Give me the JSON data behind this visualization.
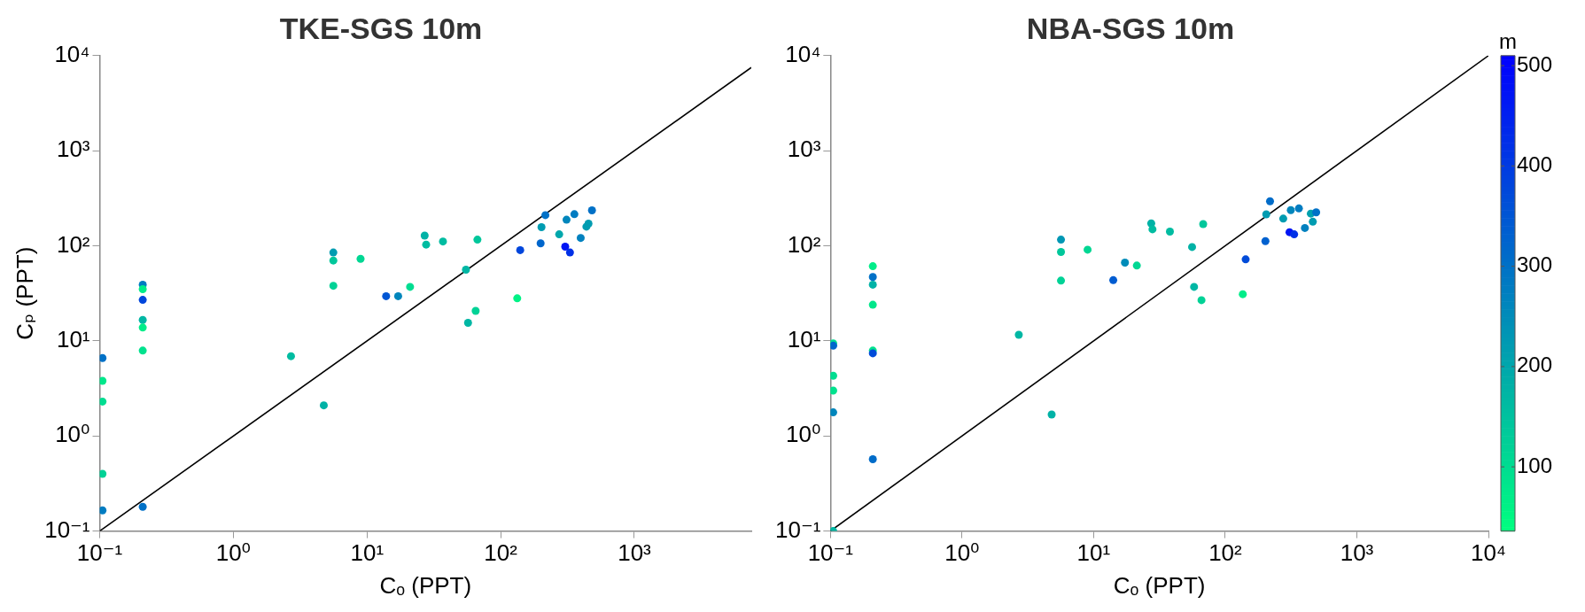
{
  "chart_data": [
    {
      "type": "scatter",
      "title": "TKE-SGS 10m",
      "xlabel": "Cₒ (PPT)",
      "ylabel": "Cₚ (PPT)",
      "log": "xy",
      "xlim": [
        0.1,
        7500
      ],
      "ylim": [
        0.1,
        10000
      ],
      "xticks": [
        {
          "value": 0.1,
          "label": "10⁻¹"
        },
        {
          "value": 1,
          "label": "10⁰"
        },
        {
          "value": 10,
          "label": "10¹"
        },
        {
          "value": 100,
          "label": "10²"
        },
        {
          "value": 1000,
          "label": "10³"
        }
      ],
      "yticks": [
        {
          "value": 0.1,
          "label": "10⁻¹"
        },
        {
          "value": 1,
          "label": "10⁰"
        },
        {
          "value": 10,
          "label": "10¹"
        },
        {
          "value": 100,
          "label": "10²"
        },
        {
          "value": 1000,
          "label": "10³"
        },
        {
          "value": 10000,
          "label": "10⁴"
        }
      ],
      "series": [
        {
          "marker": "circle",
          "x": [
            0.105,
            0.105,
            0.105,
            0.105,
            0.105,
            0.21,
            0.21,
            0.21,
            0.21,
            0.21,
            0.21,
            0.21,
            2.7,
            4.75,
            5.6,
            5.6,
            5.6,
            8.95,
            13.9,
            17.1,
            21,
            27,
            27.7,
            37,
            67,
            55,
            57,
            65,
            133,
            140,
            199,
            202,
            216,
            274,
            304,
            330,
            311,
            356,
            397,
            438,
            454,
            482
          ],
          "values": [
            6.6,
            3.8,
            2.3,
            0.4,
            0.165,
            39,
            35,
            27,
            16.6,
            13.8,
            7.9,
            0.18,
            6.9,
            2.1,
            85,
            70,
            38,
            73,
            29.5,
            29.5,
            37,
            128,
            103,
            111,
            116,
            56,
            15.5,
            20.7,
            28,
            90,
            106,
            157,
            210,
            132,
            98,
            85,
            188,
            215,
            121,
            159,
            171,
            236
          ],
          "colors": [
            "#0071c7",
            "#00e78b",
            "#00dd91",
            "#00d296",
            "#007cc1",
            "#007cc1",
            "#00ed89",
            "#0046dc",
            "#00b7a4",
            "#00ed89",
            "#00e28e",
            "#0071c7",
            "#00bca1",
            "#00b2a6",
            "#009cb1",
            "#00c79b",
            "#00d296",
            "#00d793",
            "#0056d4",
            "#0086bc",
            "#00dd91",
            "#00b2a6",
            "#00bca1",
            "#00bca1",
            "#00c79b",
            "#00b7a4",
            "#00b7a4",
            "#00d296",
            "#00f286",
            "#0046dc",
            "#0066cc",
            "#009cb1",
            "#0071c7",
            "#00a7ac",
            "#0015f4",
            "#0030e7",
            "#0086bc",
            "#007cc1",
            "#0081bf",
            "#009cb1",
            "#009cb1",
            "#0071c7"
          ]
        },
        {
          "type": "line",
          "marker": "none",
          "color": "#000000",
          "x": [
            0.1,
            7500
          ],
          "values": [
            0.1,
            7500
          ]
        }
      ]
    },
    {
      "type": "scatter",
      "title": "NBA-SGS 10m",
      "xlabel": "Cₒ (PPT)",
      "log": "xy",
      "xlim": [
        0.1,
        10000
      ],
      "ylim": [
        0.1,
        10000
      ],
      "xticks": [
        {
          "value": 0.1,
          "label": "10⁻¹"
        },
        {
          "value": 1,
          "label": "10⁰"
        },
        {
          "value": 10,
          "label": "10¹"
        },
        {
          "value": 100,
          "label": "10²"
        },
        {
          "value": 1000,
          "label": "10³"
        },
        {
          "value": 10000,
          "label": "10⁴"
        }
      ],
      "yticks": [
        {
          "value": 0.1,
          "label": "10⁻¹"
        },
        {
          "value": 1,
          "label": "10⁰"
        },
        {
          "value": 10,
          "label": "10¹"
        },
        {
          "value": 100,
          "label": "10²"
        },
        {
          "value": 1000,
          "label": "10³"
        },
        {
          "value": 10000,
          "label": "10⁴"
        }
      ],
      "clim": [
        36,
        510
      ],
      "cticks": [
        100,
        200,
        300,
        400,
        500
      ],
      "clabel": "m",
      "series": [
        {
          "marker": "circle",
          "x": [
            0.105,
            0.105,
            0.105,
            0.105,
            0.105,
            0.105,
            0.21,
            0.21,
            0.21,
            0.21,
            0.21,
            0.21,
            0.21,
            2.7,
            4.8,
            5.65,
            5.65,
            5.65,
            9,
            14.1,
            17.3,
            21.3,
            27.4,
            28,
            38,
            56,
            58,
            68,
            66,
            136,
            143,
            202,
            205,
            219,
            276,
            308,
            334,
            315,
            363,
            403,
            447,
            463,
            491
          ],
          "values": [
            9.4,
            8.9,
            4.3,
            3,
            1.77,
            0.1,
            61,
            47,
            39,
            24,
            7.9,
            7.4,
            0.57,
            11.6,
            1.68,
            116,
            86,
            43,
            91,
            43.5,
            66.5,
            62,
            172,
            149,
            141,
            97,
            37,
            169,
            26.8,
            31,
            72,
            112,
            214,
            294,
            193,
            139,
            132,
            237,
            247,
            154,
            218,
            179,
            225
          ],
          "colors": [
            "#00dd91",
            "#0066cc",
            "#00dd91",
            "#00e28e",
            "#0086bc",
            "#00b7a4",
            "#00ed89",
            "#0071c7",
            "#00b2a6",
            "#00e78b",
            "#00e28e",
            "#004bd9",
            "#006cc9",
            "#00b7a4",
            "#00b2a6",
            "#0097b4",
            "#00c79b",
            "#00d296",
            "#00d793",
            "#005cd1",
            "#008cb9",
            "#00d793",
            "#00b2a6",
            "#00bca1",
            "#00bca1",
            "#00b2a6",
            "#00b7a4",
            "#00c79b",
            "#00d296",
            "#00ed89",
            "#004bd9",
            "#0061cf",
            "#009cb1",
            "#006cc9",
            "#009cb1",
            "#0015f4",
            "#0030e7",
            "#0086bc",
            "#007cc1",
            "#0081bf",
            "#00a1ae",
            "#009cb1",
            "#0071c7"
          ]
        },
        {
          "type": "line",
          "marker": "none",
          "color": "#000000",
          "x": [
            0.1,
            10000
          ],
          "values": [
            0.1,
            10000
          ]
        }
      ]
    }
  ]
}
